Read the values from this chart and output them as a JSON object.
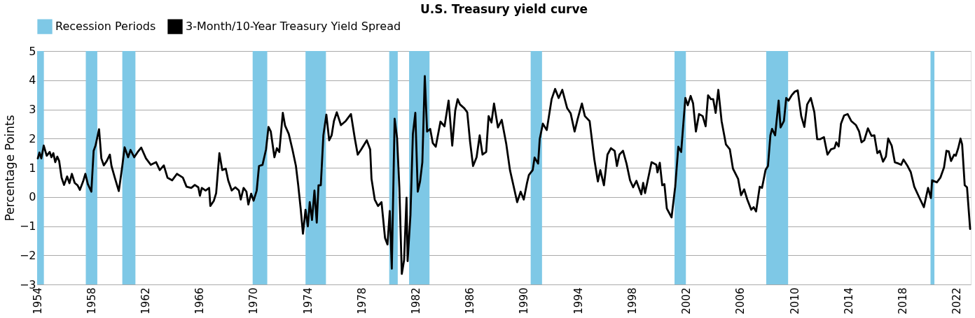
{
  "chart_data": {
    "type": "line",
    "title": "U.S. Treasury yield curve",
    "ylabel": "Percentage Points",
    "xlim": [
      1954,
      2023.05
    ],
    "xticks": [
      1954,
      1958,
      1962,
      1966,
      1970,
      1974,
      1978,
      1982,
      1986,
      1990,
      1994,
      1998,
      2002,
      2006,
      2010,
      2014,
      2018,
      2022
    ],
    "ylim": [
      -3,
      5
    ],
    "yticks": [
      -3,
      -2,
      -1,
      0,
      1,
      2,
      3,
      4,
      5
    ],
    "grid": "y",
    "legend": "top",
    "marker": "none",
    "line_style": "solid",
    "bands": [
      {
        "axis": "x",
        "from": 1954.0,
        "to": 1954.5,
        "label": "Recession Periods",
        "color": "#7ec8e6"
      },
      {
        "axis": "x",
        "from": 1957.6,
        "to": 1958.45,
        "color": "#7ec8e6"
      },
      {
        "axis": "x",
        "from": 1960.3,
        "to": 1961.27,
        "color": "#7ec8e6"
      },
      {
        "axis": "x",
        "from": 1969.94,
        "to": 1971.02,
        "color": "#7ec8e6"
      },
      {
        "axis": "x",
        "from": 1973.85,
        "to": 1975.36,
        "color": "#7ec8e6"
      },
      {
        "axis": "x",
        "from": 1980.04,
        "to": 1980.67,
        "color": "#7ec8e6"
      },
      {
        "axis": "x",
        "from": 1981.51,
        "to": 1983.02,
        "color": "#7ec8e6"
      },
      {
        "axis": "x",
        "from": 1990.5,
        "to": 1991.34,
        "color": "#7ec8e6"
      },
      {
        "axis": "x",
        "from": 2001.14,
        "to": 2001.98,
        "color": "#7ec8e6"
      },
      {
        "axis": "x",
        "from": 2007.92,
        "to": 2009.54,
        "color": "#7ec8e6"
      },
      {
        "axis": "x",
        "from": 2020.07,
        "to": 2020.36,
        "color": "#7ec8e6"
      }
    ],
    "series": [
      {
        "name": "3-Month/10-Year Treasury Yield Spread",
        "color": "#000000",
        "x": [
          1954.05,
          1954.17,
          1954.31,
          1954.49,
          1954.71,
          1954.93,
          1955.06,
          1955.2,
          1955.34,
          1955.49,
          1955.63,
          1955.81,
          1955.99,
          1956.22,
          1956.39,
          1956.57,
          1956.78,
          1956.99,
          1957.16,
          1957.4,
          1957.57,
          1957.75,
          1958.01,
          1958.18,
          1958.32,
          1958.58,
          1958.75,
          1958.93,
          1959.15,
          1959.38,
          1959.5,
          1959.77,
          1960.04,
          1960.3,
          1960.47,
          1960.73,
          1960.91,
          1961.18,
          1961.44,
          1961.7,
          1962.05,
          1962.41,
          1962.8,
          1963.07,
          1963.37,
          1963.64,
          1963.99,
          1964.34,
          1964.78,
          1965.05,
          1965.4,
          1965.66,
          1965.92,
          1966.04,
          1966.18,
          1966.46,
          1966.72,
          1966.81,
          1967.07,
          1967.24,
          1967.48,
          1967.69,
          1967.95,
          1968.13,
          1968.39,
          1968.66,
          1968.92,
          1969.06,
          1969.27,
          1969.48,
          1969.62,
          1969.83,
          1970.01,
          1970.24,
          1970.41,
          1970.67,
          1970.93,
          1971.11,
          1971.28,
          1971.55,
          1971.73,
          1971.91,
          1972.17,
          1972.34,
          1972.61,
          1972.88,
          1973.14,
          1973.31,
          1973.49,
          1973.66,
          1973.85,
          1974.02,
          1974.16,
          1974.33,
          1974.51,
          1974.68,
          1974.81,
          1974.98,
          1975.17,
          1975.39,
          1975.6,
          1975.78,
          1975.95,
          1976.16,
          1976.47,
          1976.82,
          1977.21,
          1977.49,
          1977.71,
          1977.97,
          1978.38,
          1978.63,
          1978.73,
          1978.97,
          1979.21,
          1979.47,
          1979.73,
          1979.91,
          1980.08,
          1980.23,
          1980.44,
          1980.62,
          1980.79,
          1980.97,
          1981.14,
          1981.32,
          1981.4,
          1981.61,
          1981.79,
          1981.97,
          1982.15,
          1982.32,
          1982.49,
          1982.67,
          1982.84,
          1983.07,
          1983.26,
          1983.48,
          1983.83,
          1984.13,
          1984.43,
          1984.7,
          1984.92,
          1985.1,
          1985.27,
          1985.59,
          1985.81,
          1986.02,
          1986.24,
          1986.5,
          1986.73,
          1986.94,
          1987.21,
          1987.39,
          1987.6,
          1987.79,
          1988.08,
          1988.36,
          1988.7,
          1988.97,
          1989.33,
          1989.5,
          1989.76,
          1989.99,
          1990.23,
          1990.37,
          1990.65,
          1990.79,
          1991.05,
          1991.17,
          1991.4,
          1991.69,
          1992.05,
          1992.31,
          1992.57,
          1992.84,
          1993.2,
          1993.46,
          1993.75,
          1993.98,
          1994.29,
          1994.51,
          1994.86,
          1995.21,
          1995.47,
          1995.65,
          1995.92,
          1996.18,
          1996.44,
          1996.71,
          1996.88,
          1997.06,
          1997.33,
          1997.59,
          1997.85,
          1998.08,
          1998.32,
          1998.68,
          1998.82,
          1998.96,
          1999.2,
          1999.44,
          1999.79,
          1999.88,
          2000.05,
          2000.23,
          2000.39,
          2000.57,
          2000.92,
          2001.19,
          2001.42,
          2001.63,
          2001.94,
          2002.12,
          2002.33,
          2002.51,
          2002.72,
          2002.95,
          2003.22,
          2003.44,
          2003.62,
          2003.83,
          2004.0,
          2004.18,
          2004.38,
          2004.62,
          2004.94,
          2005.23,
          2005.46,
          2005.84,
          2006.06,
          2006.29,
          2006.52,
          2006.81,
          2006.99,
          2007.17,
          2007.44,
          2007.61,
          2007.87,
          2008.05,
          2008.23,
          2008.35,
          2008.58,
          2008.84,
          2008.98,
          2009.23,
          2009.4,
          2009.57,
          2009.8,
          2010.04,
          2010.25,
          2010.51,
          2010.74,
          2010.95,
          2011.22,
          2011.48,
          2011.69,
          2011.92,
          2012.19,
          2012.45,
          2012.71,
          2012.97,
          2013.1,
          2013.28,
          2013.45,
          2013.68,
          2013.94,
          2014.21,
          2014.56,
          2014.79,
          2014.97,
          2015.17,
          2015.44,
          2015.71,
          2015.92,
          2016.14,
          2016.32,
          2016.56,
          2016.77,
          2016.94,
          2017.2,
          2017.43,
          2017.72,
          2017.9,
          2018.07,
          2018.35,
          2018.61,
          2018.87,
          2019.22,
          2019.58,
          2019.89,
          2020.1,
          2020.19,
          2020.54,
          2020.8,
          2021.07,
          2021.25,
          2021.42,
          2021.59,
          2021.82,
          2021.94,
          2022.12,
          2022.29,
          2022.41,
          2022.6,
          2022.77,
          2023.0
        ],
        "values": [
          1.32,
          1.52,
          1.32,
          1.76,
          1.41,
          1.54,
          1.36,
          1.5,
          1.19,
          1.38,
          1.23,
          0.66,
          0.41,
          0.7,
          0.47,
          0.79,
          0.48,
          0.4,
          0.24,
          0.53,
          0.79,
          0.44,
          0.18,
          1.58,
          1.76,
          2.32,
          1.32,
          1.08,
          1.23,
          1.45,
          1.06,
          0.62,
          0.2,
          1.06,
          1.7,
          1.36,
          1.61,
          1.36,
          1.54,
          1.69,
          1.32,
          1.1,
          1.19,
          0.92,
          1.08,
          0.66,
          0.57,
          0.79,
          0.66,
          0.35,
          0.31,
          0.41,
          0.33,
          0.04,
          0.31,
          0.22,
          0.31,
          -0.31,
          -0.13,
          0.13,
          1.5,
          0.92,
          0.97,
          0.57,
          0.22,
          0.33,
          0.22,
          -0.09,
          0.31,
          0.18,
          -0.26,
          0.11,
          -0.13,
          0.22,
          1.06,
          1.1,
          1.63,
          2.4,
          2.24,
          1.36,
          1.67,
          1.54,
          2.88,
          2.44,
          2.16,
          1.63,
          1.06,
          0.4,
          -0.4,
          -1.26,
          -0.44,
          -1.01,
          -0.18,
          -0.79,
          0.22,
          -0.88,
          0.4,
          0.4,
          2.11,
          2.82,
          1.94,
          2.11,
          2.6,
          2.9,
          2.46,
          2.6,
          2.84,
          2.02,
          1.45,
          1.63,
          1.94,
          1.63,
          0.62,
          -0.09,
          -0.31,
          -0.18,
          -1.41,
          -1.63,
          -0.48,
          -2.46,
          2.68,
          2.02,
          0.31,
          -2.64,
          -2.16,
          -0.03,
          -2.2,
          -0.62,
          2.16,
          2.88,
          0.18,
          0.53,
          1.19,
          4.14,
          2.24,
          2.33,
          1.85,
          1.72,
          2.58,
          2.42,
          3.3,
          1.76,
          2.95,
          3.35,
          3.17,
          3.04,
          2.9,
          1.89,
          1.06,
          1.36,
          2.11,
          1.45,
          1.54,
          2.77,
          2.55,
          3.2,
          2.38,
          2.64,
          1.8,
          0.92,
          0.18,
          -0.18,
          0.18,
          -0.09,
          0.48,
          0.75,
          0.92,
          1.35,
          1.14,
          1.98,
          2.51,
          2.29,
          3.35,
          3.7,
          3.39,
          3.67,
          3.04,
          2.86,
          2.24,
          2.68,
          3.2,
          2.77,
          2.6,
          1.28,
          0.53,
          0.92,
          0.4,
          1.45,
          1.67,
          1.58,
          1.06,
          1.45,
          1.58,
          1.14,
          0.57,
          0.33,
          0.55,
          0.09,
          0.48,
          0.13,
          0.66,
          1.19,
          1.1,
          0.84,
          1.17,
          0.4,
          0.44,
          -0.4,
          -0.7,
          0.35,
          1.72,
          1.54,
          3.39,
          3.14,
          3.46,
          3.21,
          2.24,
          2.84,
          2.77,
          2.42,
          3.48,
          3.35,
          3.35,
          2.88,
          3.67,
          2.6,
          1.8,
          1.63,
          0.97,
          0.62,
          0.06,
          0.26,
          -0.09,
          -0.44,
          -0.35,
          -0.5,
          0.35,
          0.31,
          0.92,
          1.06,
          2.11,
          2.33,
          2.11,
          3.3,
          2.38,
          2.6,
          3.39,
          3.3,
          3.48,
          3.61,
          3.65,
          2.77,
          2.4,
          3.17,
          3.39,
          2.9,
          1.98,
          1.98,
          2.05,
          1.45,
          1.63,
          1.67,
          1.87,
          1.73,
          2.51,
          2.79,
          2.84,
          2.6,
          2.46,
          2.24,
          1.87,
          1.94,
          2.35,
          2.09,
          2.11,
          1.5,
          1.58,
          1.21,
          1.38,
          2.0,
          1.76,
          1.19,
          1.14,
          1.1,
          1.28,
          1.08,
          0.85,
          0.35,
          0.0,
          -0.35,
          0.31,
          -0.04,
          0.57,
          0.5,
          0.66,
          1.01,
          1.58,
          1.56,
          1.23,
          1.45,
          1.41,
          1.67,
          2.0,
          1.8,
          0.4,
          0.33,
          -1.1
        ]
      }
    ]
  }
}
